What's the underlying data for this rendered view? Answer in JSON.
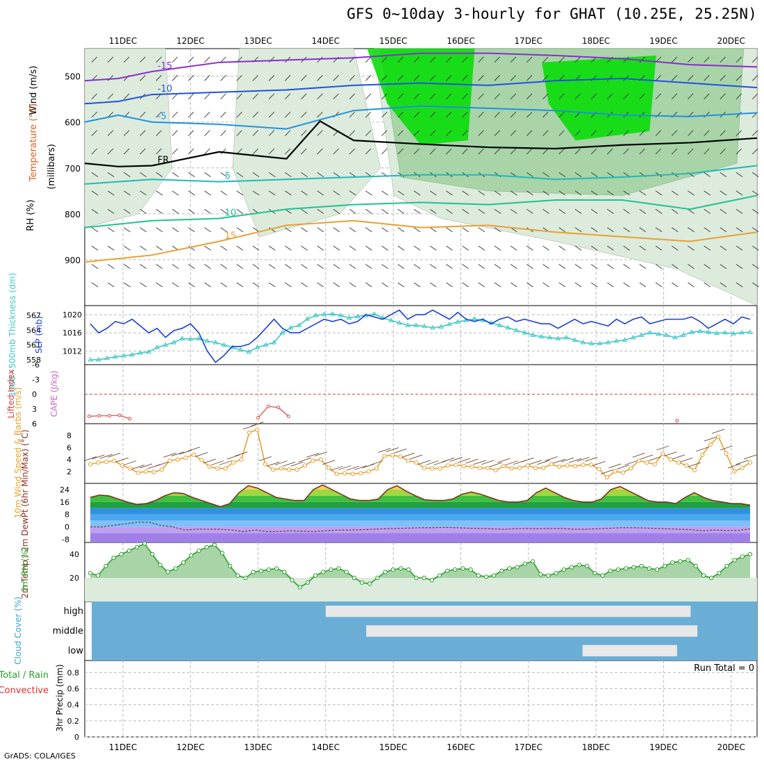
{
  "title": "GFS 0~10day 3-hourly for GHAT (10.25E, 25.25N)",
  "footer": "GrADS: COLA/IGES",
  "colors": {
    "wind_label": "#000000",
    "temp_label": "#e06020",
    "rh_fill_light": "#dcebdc",
    "rh_fill_mid": "#a8d4a8",
    "rh_fill_green": "#00dd00",
    "slp_line": "#1a3fd0",
    "thickness_line": "#3cc8c8",
    "li_line": "#e04040",
    "cape_label": "#cc66cc",
    "wind10_line": "#e8a030",
    "rh2m_line": "#2aa02a",
    "cloud_blue": "#6aaed6",
    "cloud_gray": "#e8e8e8",
    "precip_total": "#2aa02a",
    "precip_conv": "#e03030"
  },
  "chart_data": [
    {
      "type": "contour",
      "panel": "upper-air",
      "title": "",
      "x_ticks": [
        "11DEC",
        "12DEC",
        "13DEC",
        "14DEC",
        "15DEC",
        "16DEC",
        "17DEC",
        "18DEC",
        "19DEC",
        "20DEC"
      ],
      "ylabel_parts": [
        "RH (%)",
        "Temperature (°C)",
        "Wind (m/s)"
      ],
      "ylabel_units": "(millibars)",
      "y_ticks": [
        500,
        600,
        700,
        800,
        900
      ],
      "ylim": [
        1000,
        440
      ],
      "temperature_contours": [
        {
          "value": -15,
          "label": "-15",
          "color": "#8a2bd0",
          "pts": [
            [
              0,
              510
            ],
            [
              0.5,
              505
            ],
            [
              1,
              490
            ],
            [
              2,
              470
            ],
            [
              3,
              465
            ],
            [
              4,
              460
            ],
            [
              5,
              450
            ],
            [
              6,
              450
            ],
            [
              7,
              455
            ],
            [
              8,
              462
            ],
            [
              9,
              475
            ],
            [
              10,
              480
            ]
          ]
        },
        {
          "value": -10,
          "label": "-10",
          "color": "#2050e0",
          "pts": [
            [
              0,
              560
            ],
            [
              0.5,
              555
            ],
            [
              1,
              540
            ],
            [
              2,
              535
            ],
            [
              3,
              530
            ],
            [
              4,
              520
            ],
            [
              5,
              515
            ],
            [
              6,
              520
            ],
            [
              7,
              510
            ],
            [
              8,
              505
            ],
            [
              9,
              515
            ],
            [
              10,
              525
            ]
          ]
        },
        {
          "value": -5,
          "label": "-5",
          "color": "#2090e0",
          "pts": [
            [
              0,
              600
            ],
            [
              0.5,
              585
            ],
            [
              1,
              600
            ],
            [
              2,
              605
            ],
            [
              3,
              615
            ],
            [
              4,
              575
            ],
            [
              5,
              565
            ],
            [
              6,
              570
            ],
            [
              7,
              575
            ],
            [
              8,
              585
            ],
            [
              9,
              588
            ],
            [
              10,
              580
            ]
          ]
        },
        {
          "value": 0,
          "label": "FR",
          "color": "#000000",
          "pts": [
            [
              0,
              690
            ],
            [
              0.5,
              697
            ],
            [
              1,
              695
            ],
            [
              2,
              665
            ],
            [
              3,
              680
            ],
            [
              3.5,
              598
            ],
            [
              4,
              640
            ],
            [
              5,
              648
            ],
            [
              6,
              655
            ],
            [
              7,
              658
            ],
            [
              8,
              650
            ],
            [
              9,
              645
            ],
            [
              10,
              635
            ]
          ]
        },
        {
          "value": 5,
          "label": "5",
          "color": "#20b8b8",
          "pts": [
            [
              0,
              735
            ],
            [
              1,
              725
            ],
            [
              2,
              730
            ],
            [
              3,
              725
            ],
            [
              4,
              720
            ],
            [
              5,
              715
            ],
            [
              6,
              715
            ],
            [
              7,
              725
            ],
            [
              8,
              720
            ],
            [
              9,
              712
            ],
            [
              10,
              695
            ]
          ]
        },
        {
          "value": 10,
          "label": "10",
          "color": "#20c090",
          "pts": [
            [
              0,
              830
            ],
            [
              1,
              815
            ],
            [
              2,
              810
            ],
            [
              3,
              790
            ],
            [
              4,
              780
            ],
            [
              5,
              775
            ],
            [
              6,
              780
            ],
            [
              7,
              770
            ],
            [
              8,
              770
            ],
            [
              9,
              790
            ],
            [
              10,
              760
            ]
          ]
        },
        {
          "value": 15,
          "label": "15",
          "color": "#e8a030",
          "pts": [
            [
              0,
              905
            ],
            [
              1,
              890
            ],
            [
              2,
              860
            ],
            [
              3,
              825
            ],
            [
              4,
              815
            ],
            [
              5,
              830
            ],
            [
              6,
              825
            ],
            [
              7,
              840
            ],
            [
              8,
              850
            ],
            [
              9,
              860
            ],
            [
              10,
              840
            ]
          ]
        }
      ],
      "rh_levels": [
        30,
        50,
        70,
        90
      ]
    },
    {
      "type": "line",
      "panel": "slp-thickness",
      "ylabel_left": "1000~500mb Thickness (dm)",
      "ylabel_right": "SLP (mb)",
      "left_ticks": [
        558,
        561,
        564,
        567
      ],
      "right_ticks": [
        1012,
        1016,
        1020
      ],
      "series": [
        {
          "name": "SLP (mb)",
          "axis": "right",
          "ylim": [
            1009,
            1022
          ],
          "values": [
            1018,
            1016,
            1017,
            1018.5,
            1018,
            1019,
            1017.5,
            1016,
            1017,
            1015,
            1016.5,
            1017,
            1018,
            1016,
            1012,
            1009.5,
            1011,
            1013,
            1013,
            1013.5,
            1015,
            1017,
            1019,
            1017,
            1016,
            1016,
            1017,
            1018,
            1019,
            1018.5,
            1019,
            1018,
            1018.5,
            1020,
            1019.5,
            1019,
            1020,
            1021,
            1019,
            1020,
            1020,
            1021,
            1020,
            1019,
            1020.5,
            1019,
            1018.5,
            1019,
            1018,
            1019,
            1019.5,
            1018.5,
            1019,
            1018.5,
            1018,
            1018,
            1017,
            1018,
            1019,
            1018,
            1018.5,
            1018,
            1017.5,
            1019,
            1018,
            1019,
            1019.5,
            1018,
            1018.5,
            1019,
            1019,
            1019,
            1019.5,
            1018.5,
            1017,
            1018,
            1019,
            1018,
            1019.5,
            1019
          ]
        },
        {
          "name": "1000-500mb Thickness (dm)",
          "axis": "left",
          "ylim": [
            557,
            569
          ],
          "values": [
            558,
            558,
            558.3,
            558.6,
            558.8,
            559,
            559.4,
            559.6,
            560.5,
            561,
            561.5,
            562.3,
            562.2,
            562.3,
            561.8,
            561.5,
            561,
            560.5,
            560,
            559.6,
            560.5,
            561,
            561.5,
            563.5,
            564.5,
            565,
            566.3,
            567,
            567.2,
            567.3,
            567,
            566.5,
            566.8,
            567,
            567.3,
            566.5,
            566,
            565.5,
            565,
            565,
            564.8,
            564.5,
            564.7,
            565.2,
            565.7,
            566,
            566.3,
            566,
            565.5,
            565,
            564.5,
            564,
            563.5,
            563,
            562.7,
            562.5,
            562.3,
            562.5,
            562,
            561.5,
            561.3,
            561.3,
            561.5,
            561.8,
            562,
            562.5,
            563,
            563.5,
            563.2,
            563,
            562.5,
            563,
            563.6,
            563.8,
            563.6,
            563.4,
            563.5,
            563.3,
            563.5,
            563.6
          ]
        }
      ]
    },
    {
      "type": "line",
      "panel": "stability",
      "ylabel_left": "Lifted Index",
      "ylabel_right": "CAPE (J/kg)",
      "y_ticks": [
        -6,
        -3,
        0,
        3,
        6
      ],
      "ylim": [
        -6,
        6
      ],
      "series": [
        {
          "name": "Lifted Index",
          "segments": [
            {
              "x": [
                0,
                0.15,
                0.3,
                0.45,
                0.6
              ],
              "values": [
                4.5,
                4.4,
                4.4,
                4.3,
                5
              ]
            },
            {
              "x": [
                2.5,
                2.65,
                2.8,
                2.95
              ],
              "values": [
                4.8,
                2.5,
                2.7,
                4.5
              ]
            },
            {
              "x": [
                8.7
              ],
              "values": [
                5.4
              ]
            }
          ]
        }
      ]
    },
    {
      "type": "line",
      "panel": "wind10m",
      "ylabel": "10m Wind Speed & Barbs (m/s)",
      "y_ticks": [
        2,
        4,
        6,
        8
      ],
      "ylim": [
        0,
        10
      ],
      "series": [
        {
          "name": "10m Wind Speed",
          "values": [
            3.2,
            3.5,
            3.6,
            3.8,
            3.0,
            2.5,
            1.8,
            2.0,
            1.9,
            2.3,
            3.8,
            4.0,
            4.3,
            4.8,
            3.9,
            2.8,
            2.5,
            2.5,
            3.5,
            4.0,
            8.5,
            9.0,
            3.2,
            2.3,
            2.5,
            2.3,
            2.3,
            3.0,
            3.8,
            4.0,
            2.6,
            1.6,
            1.7,
            1.6,
            1.7,
            2.0,
            2.5,
            4.6,
            4.7,
            4.5,
            3.8,
            3.5,
            2.6,
            2.5,
            2.5,
            3.0,
            3.1,
            2.9,
            2.8,
            2.6,
            2.6,
            2.2,
            2.9,
            2.5,
            2.6,
            3.0,
            2.6,
            2.6,
            3.2,
            2.8,
            3.0,
            2.9,
            3.1,
            3.1,
            2.4,
            1.0,
            2.0,
            1.8,
            2.5,
            3.8,
            3.5,
            3.2,
            5.0,
            4.0,
            3.5,
            3.0,
            2.2,
            4.8,
            6.5,
            7.8,
            5.0,
            2.0,
            2.6,
            3.5
          ]
        }
      ]
    },
    {
      "type": "area",
      "panel": "temp2m",
      "ylabel": "2m Temp / 2m DewPt (6hr Min/Max) (°C)",
      "y_ticks": [
        -8,
        0,
        8,
        16,
        24
      ],
      "ylim": [
        -10,
        28
      ],
      "series": [
        {
          "name": "2m Temp",
          "values": [
            19,
            20.5,
            20,
            18,
            16,
            14.5,
            15,
            17,
            20,
            22,
            21.5,
            19,
            17,
            15,
            13,
            15,
            22,
            26.5,
            25,
            22,
            19,
            18,
            17,
            17,
            24,
            27,
            24,
            21,
            18,
            17,
            17,
            18,
            24,
            26.5,
            23,
            20,
            17.5,
            17,
            17,
            18,
            21,
            22.5,
            21,
            19,
            17,
            16,
            16,
            17,
            22,
            25,
            22,
            19,
            17,
            16,
            16,
            18,
            24,
            26,
            23,
            20,
            17,
            16,
            16,
            15,
            19,
            22,
            19,
            17,
            16,
            15,
            15,
            14
          ]
        },
        {
          "name": "2m DewPt",
          "values": [
            0,
            0,
            1,
            2,
            3,
            3,
            1,
            0,
            -2,
            -1.5,
            -1.5,
            -1.5,
            -2,
            -3,
            -2,
            -3,
            -3,
            -2.5,
            -2.8,
            -3,
            -2.5,
            -2,
            -2,
            -1.8,
            -1.5,
            -1.2,
            -1,
            -0.8,
            -0.5,
            -0.5,
            -0.3,
            -0.5,
            -0.8,
            -1,
            -1.2,
            -1.5,
            -1.2,
            -1,
            -1.2,
            -1,
            -1,
            -1.5,
            -1.5,
            -1.2,
            -0.9,
            -0.5,
            -0.5,
            -0.7,
            -1,
            -1.2,
            -1.5,
            -1.8,
            -2.5,
            -2,
            -2.3,
            -2.2,
            -1.3
          ]
        }
      ]
    },
    {
      "type": "area",
      "panel": "rh2m",
      "ylabel": "2m RH (%)",
      "y_ticks": [
        20,
        40
      ],
      "ylim": [
        0,
        50
      ],
      "series": [
        {
          "name": "2m RH",
          "values": [
            24,
            22,
            30,
            37,
            40,
            43,
            46,
            49,
            40,
            31,
            25,
            28,
            33,
            39,
            43,
            46,
            48,
            41,
            30,
            22,
            20,
            25,
            26,
            27,
            28,
            25,
            18,
            12,
            16,
            22,
            25,
            27,
            28,
            25,
            20,
            16,
            15,
            20,
            25,
            27,
            28,
            27,
            20,
            20,
            18,
            22,
            26,
            27,
            28,
            27,
            22,
            21,
            22,
            26,
            28,
            29,
            32,
            34,
            23,
            22,
            24,
            27,
            29,
            31,
            30,
            24,
            22,
            26,
            27,
            28,
            29,
            30,
            28,
            27,
            30,
            33,
            34,
            35,
            30,
            22,
            20,
            24,
            30,
            35,
            38,
            40
          ]
        }
      ]
    },
    {
      "type": "heatmap",
      "panel": "cloud-cover",
      "ylabel": "Cloud Cover (%)",
      "rows": [
        "high",
        "middle",
        "low"
      ],
      "row_ranges": [
        {
          "name": "high",
          "clear_until": 3.5,
          "cloudy_from": 3.5,
          "cloudy_until": 8.9
        },
        {
          "name": "middle",
          "clear_until": 3.9,
          "cloudy_from": 4.1,
          "cloudy_until": 9.0
        },
        {
          "name": "low",
          "clear_until": 5.0,
          "cloudy_from": 7.3,
          "cloudy_until": 8.7
        }
      ]
    },
    {
      "type": "bar",
      "panel": "precip",
      "ylabel_left_1": "Total / Rain",
      "ylabel_left_2": "Convective",
      "ylabel": "3hr Precip (mm)",
      "y_ticks": [
        0,
        0.2,
        0.4,
        0.6,
        0.8
      ],
      "ylim": [
        0,
        0.95
      ],
      "run_total_label": "Run Total = 0",
      "values": []
    }
  ]
}
